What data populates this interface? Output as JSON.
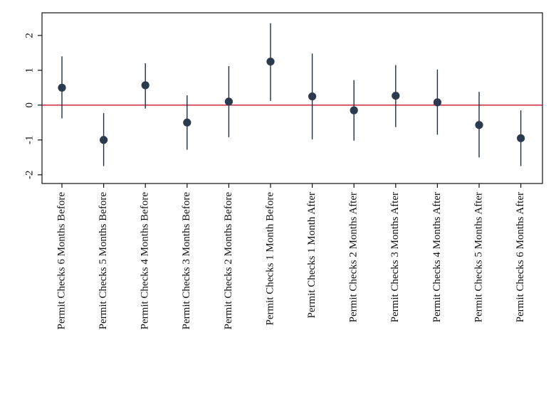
{
  "chart_data": {
    "type": "scatter",
    "subtype": "coefficient-plot-with-confidence-intervals",
    "title": "",
    "xlabel": "",
    "ylabel": "",
    "categories": [
      "Permit Checks 6 Months Before",
      "Permit Checks 5 Months Before",
      "Permit Checks 4 Months Before",
      "Permit Checks 3 Months Before",
      "Permit Checks 2 Months Before",
      "Permit Checks 1 Month Before",
      "Permit Checks 1 Month After",
      "Permit Checks 2 Months After",
      "Permit Checks 3 Months After",
      "Permit Checks 4 Months After",
      "Permit Checks 5 Months After",
      "Permit Checks 6 Months After"
    ],
    "series": [
      {
        "estimate": [
          0.5,
          -1.0,
          0.57,
          -0.5,
          0.1,
          1.25,
          0.25,
          -0.15,
          0.27,
          0.08,
          -0.57,
          -0.95
        ],
        "ci_lower": [
          -0.38,
          -1.75,
          -0.1,
          -1.28,
          -0.92,
          0.12,
          -0.98,
          -1.02,
          -0.63,
          -0.85,
          -1.5,
          -1.75
        ],
        "ci_upper": [
          1.4,
          -0.23,
          1.2,
          0.28,
          1.12,
          2.35,
          1.48,
          0.72,
          1.15,
          1.02,
          0.38,
          -0.15
        ]
      }
    ],
    "yticks": [
      -2,
      -1,
      0,
      1,
      2
    ],
    "ytick_labels": [
      "-2",
      "-1",
      "0",
      "1",
      "2"
    ],
    "ylim": [
      -2.25,
      2.65
    ],
    "reference_line": {
      "y": 0,
      "color": "#c8102e"
    },
    "grid": false,
    "legend": "none",
    "colors": {
      "marker": "#2b3a4e",
      "ci_line": "#1f2f45",
      "axis": "#111111",
      "reference": "#c8102e"
    }
  }
}
